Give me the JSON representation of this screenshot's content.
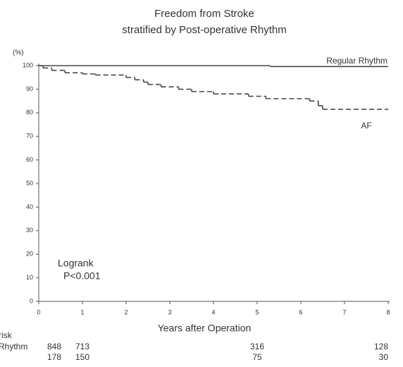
{
  "chart_data": {
    "type": "step",
    "title": "Freedom from Stroke",
    "subtitle": "stratified by Post-operative Rhythm",
    "y_label": "(%)",
    "x_label": "Years after Operation",
    "xlim": [
      0,
      8
    ],
    "xticks": [
      0,
      1,
      2,
      3,
      4,
      5,
      6,
      7,
      8
    ],
    "ylim": [
      0,
      100
    ],
    "yticks": [
      0,
      10,
      20,
      30,
      40,
      50,
      60,
      70,
      80,
      90,
      100
    ],
    "series": [
      {
        "name": "Regular Rhythm",
        "color": "#4a4a4a",
        "dashed": false,
        "x": [
          0,
          5.3
        ],
        "values": [
          100,
          99.6
        ]
      },
      {
        "name": "AF",
        "color": "#4a4a4a",
        "dashed": true,
        "x": [
          0,
          0.1,
          0.3,
          0.6,
          1.0,
          1.3,
          2.0,
          2.2,
          2.4,
          2.5,
          2.8,
          3.2,
          3.5,
          4.0,
          4.8,
          5.2,
          6.2,
          6.4,
          6.5
        ],
        "values": [
          100,
          99,
          98,
          97,
          96.5,
          96,
          95,
          94,
          93,
          92,
          91,
          90,
          89,
          88,
          87,
          86,
          85,
          83,
          81.5
        ]
      }
    ],
    "annotations": [
      "Logrank",
      "P<0.001"
    ],
    "risk_table": {
      "title": "risk",
      "x": [
        0,
        1,
        5,
        8
      ],
      "rows": [
        {
          "label": "Rhythm",
          "values": [
            848,
            713,
            316,
            128
          ]
        },
        {
          "values": [
            178,
            150,
            75,
            30
          ]
        }
      ]
    }
  }
}
